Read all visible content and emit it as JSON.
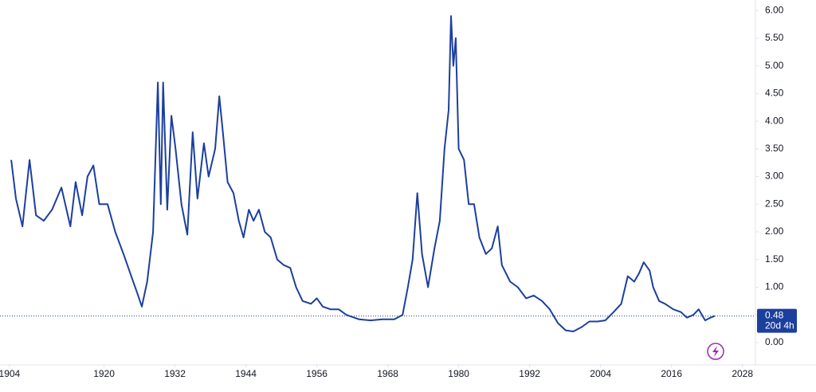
{
  "chart_data": {
    "type": "line",
    "x": [
      1904.3,
      1905.1,
      1906.2,
      1907.4,
      1908.5,
      1909.8,
      1911.2,
      1912.8,
      1914.3,
      1915.2,
      1916.3,
      1917.2,
      1918.2,
      1919.2,
      1920.6,
      1921.9,
      1923.3,
      1924.6,
      1925.6,
      1926.4,
      1927.3,
      1928.3,
      1929.1,
      1929.6,
      1930.0,
      1930.7,
      1931.4,
      1932.1,
      1933.1,
      1934.1,
      1935.0,
      1935.8,
      1936.9,
      1937.7,
      1938.8,
      1939.5,
      1940.1,
      1940.9,
      1941.9,
      1942.8,
      1943.6,
      1944.5,
      1945.3,
      1946.2,
      1947.2,
      1948.2,
      1949.3,
      1950.4,
      1951.5,
      1952.5,
      1953.6,
      1955.0,
      1956.0,
      1957.0,
      1958.3,
      1959.7,
      1961.0,
      1963.1,
      1965.1,
      1967.1,
      1969.1,
      1970.5,
      1971.4,
      1972.2,
      1973.0,
      1973.8,
      1974.8,
      1975.9,
      1976.8,
      1977.6,
      1978.3,
      1978.7,
      1979.1,
      1979.5,
      1980.0,
      1980.9,
      1981.7,
      1982.6,
      1983.5,
      1984.6,
      1985.6,
      1986.6,
      1987.3,
      1988.7,
      1990.0,
      1991.4,
      1992.7,
      1994.1,
      1995.4,
      1996.8,
      1998.1,
      1999.4,
      2000.8,
      2002.1,
      2003.5,
      2004.8,
      2006.2,
      2007.5,
      2008.6,
      2009.7,
      2010.5,
      2011.3,
      2012.3,
      2012.9,
      2013.9,
      2014.9,
      2016.3,
      2017.6,
      2018.6,
      2019.7,
      2020.6,
      2021.7,
      2022.6,
      2023.3
    ],
    "values": [
      3.3,
      2.6,
      2.1,
      3.3,
      2.3,
      2.2,
      2.4,
      2.8,
      2.1,
      2.9,
      2.3,
      3.0,
      3.2,
      2.5,
      2.5,
      2.0,
      1.6,
      1.2,
      0.9,
      0.65,
      1.1,
      2.0,
      4.7,
      2.5,
      4.7,
      2.4,
      4.1,
      3.5,
      2.5,
      1.95,
      3.8,
      2.6,
      3.6,
      3.0,
      3.5,
      4.45,
      3.8,
      2.9,
      2.7,
      2.2,
      1.9,
      2.4,
      2.2,
      2.4,
      2.0,
      1.9,
      1.5,
      1.4,
      1.35,
      1.0,
      0.75,
      0.7,
      0.8,
      0.65,
      0.6,
      0.6,
      0.5,
      0.42,
      0.4,
      0.42,
      0.42,
      0.5,
      1.0,
      1.5,
      2.7,
      1.6,
      1.0,
      1.7,
      2.2,
      3.5,
      4.2,
      5.9,
      5.0,
      5.5,
      3.5,
      3.3,
      2.5,
      2.5,
      1.9,
      1.6,
      1.7,
      2.1,
      1.4,
      1.1,
      1.0,
      0.8,
      0.85,
      0.75,
      0.6,
      0.35,
      0.22,
      0.2,
      0.28,
      0.38,
      0.38,
      0.4,
      0.55,
      0.7,
      1.2,
      1.1,
      1.25,
      1.45,
      1.3,
      1.0,
      0.75,
      0.7,
      0.6,
      0.55,
      0.45,
      0.5,
      0.6,
      0.4,
      0.45,
      0.48
    ],
    "color": "#1c3f9e",
    "xlim": [
      1902.4,
      2030.2
    ],
    "xticks": [
      1904,
      1920,
      1932,
      1944,
      1956,
      1968,
      1980,
      1992,
      2004,
      2016,
      2028
    ],
    "ylim": [
      -0.39,
      6.19
    ],
    "yticks": [
      {
        "value": 0,
        "label": "0.00"
      },
      {
        "value": 0.5,
        "label": "0.50"
      },
      {
        "value": 1,
        "label": "1.00"
      },
      {
        "value": 1.5,
        "label": "1.50"
      },
      {
        "value": 2,
        "label": "2.00"
      },
      {
        "value": 2.5,
        "label": "2.50"
      },
      {
        "value": 3,
        "label": "3.00"
      },
      {
        "value": 3.5,
        "label": "3.50"
      },
      {
        "value": 4,
        "label": "4.00"
      },
      {
        "value": 4.5,
        "label": "4.50"
      },
      {
        "value": 5,
        "label": "5.00"
      },
      {
        "value": 5.5,
        "label": "5.50"
      },
      {
        "value": 6,
        "label": "6.00"
      }
    ],
    "last_value": 0.48,
    "countdown": "20d 4h"
  }
}
